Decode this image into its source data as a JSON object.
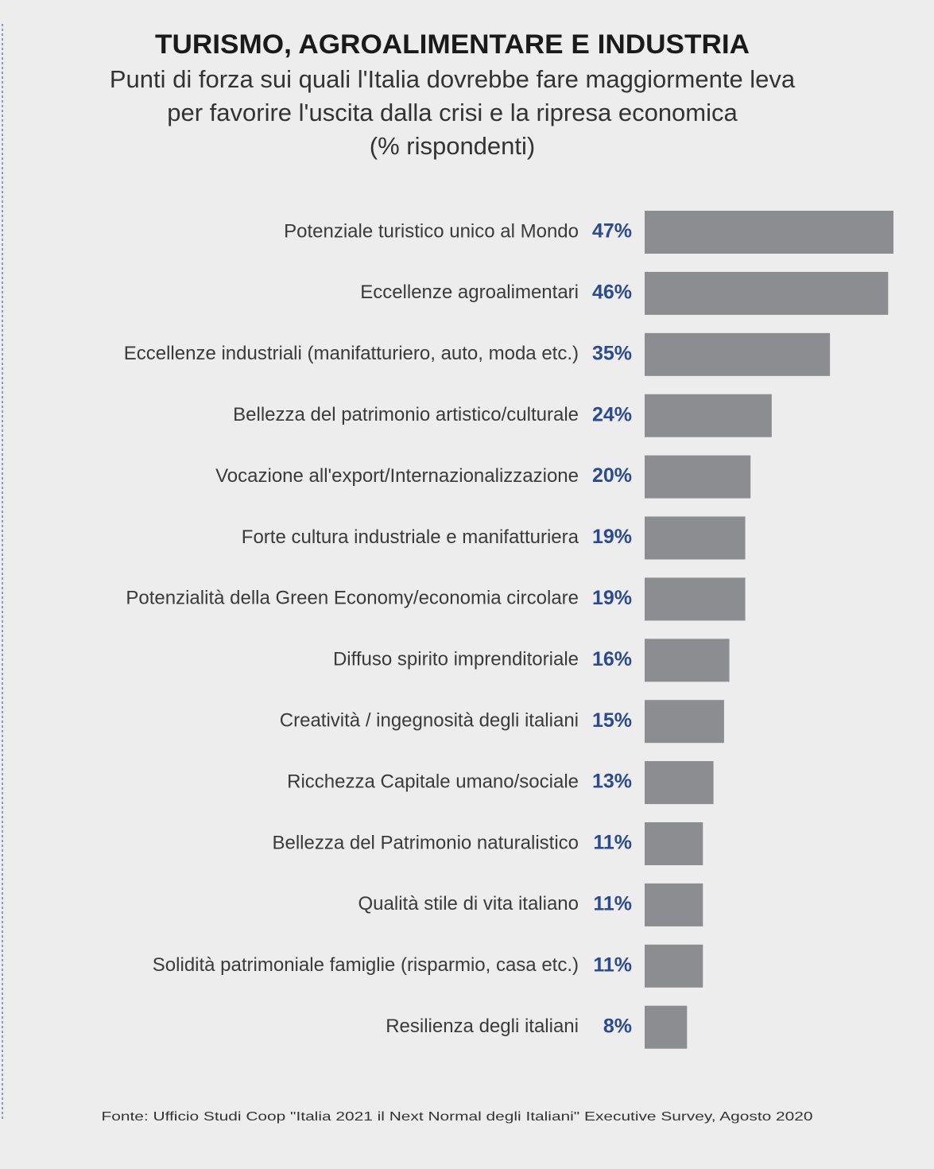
{
  "chart_data": {
    "type": "hbar",
    "title": "TURISMO, AGROALIMENTARE E INDUSTRIA",
    "subtitle": [
      "Punti di forza sui quali l'Italia dovrebbe fare maggiormente leva",
      "per favorire l'uscita dalla crisi e la ripresa economica",
      "(% rispondenti)"
    ],
    "categories": [
      "Potenziale turistico unico al Mondo",
      "Eccellenze agroalimentari",
      "Eccellenze industriali (manifatturiero, auto, moda etc.)",
      "Bellezza del patrimonio artistico/culturale",
      "Vocazione all'export/Internazionalizzazione",
      "Forte cultura industriale e manifatturiera",
      "Potenzialità della Green Economy/economia circolare",
      "Diffuso spirito imprenditoriale",
      "Creatività / ingegnosità degli italiani",
      "Ricchezza Capitale umano/sociale",
      "Bellezza del Patrimonio naturalistico",
      "Qualità stile di vita italiano",
      "Solidità patrimoniale famiglie (risparmio, casa etc.)",
      "Resilienza degli italiani"
    ],
    "values": [
      47,
      46,
      35,
      24,
      20,
      19,
      19,
      16,
      15,
      13,
      11,
      11,
      11,
      8
    ],
    "value_labels": [
      "47%",
      "46%",
      "35%",
      "24%",
      "20%",
      "19%",
      "19%",
      "16%",
      "15%",
      "13%",
      "11%",
      "11%",
      "11%",
      "8%"
    ],
    "color": "#8b8d90",
    "source": "Fonte: Ufficio Studi Coop \"Italia 2021 il Next Normal degli Italiani\" Executive Survey, Agosto 2020"
  }
}
